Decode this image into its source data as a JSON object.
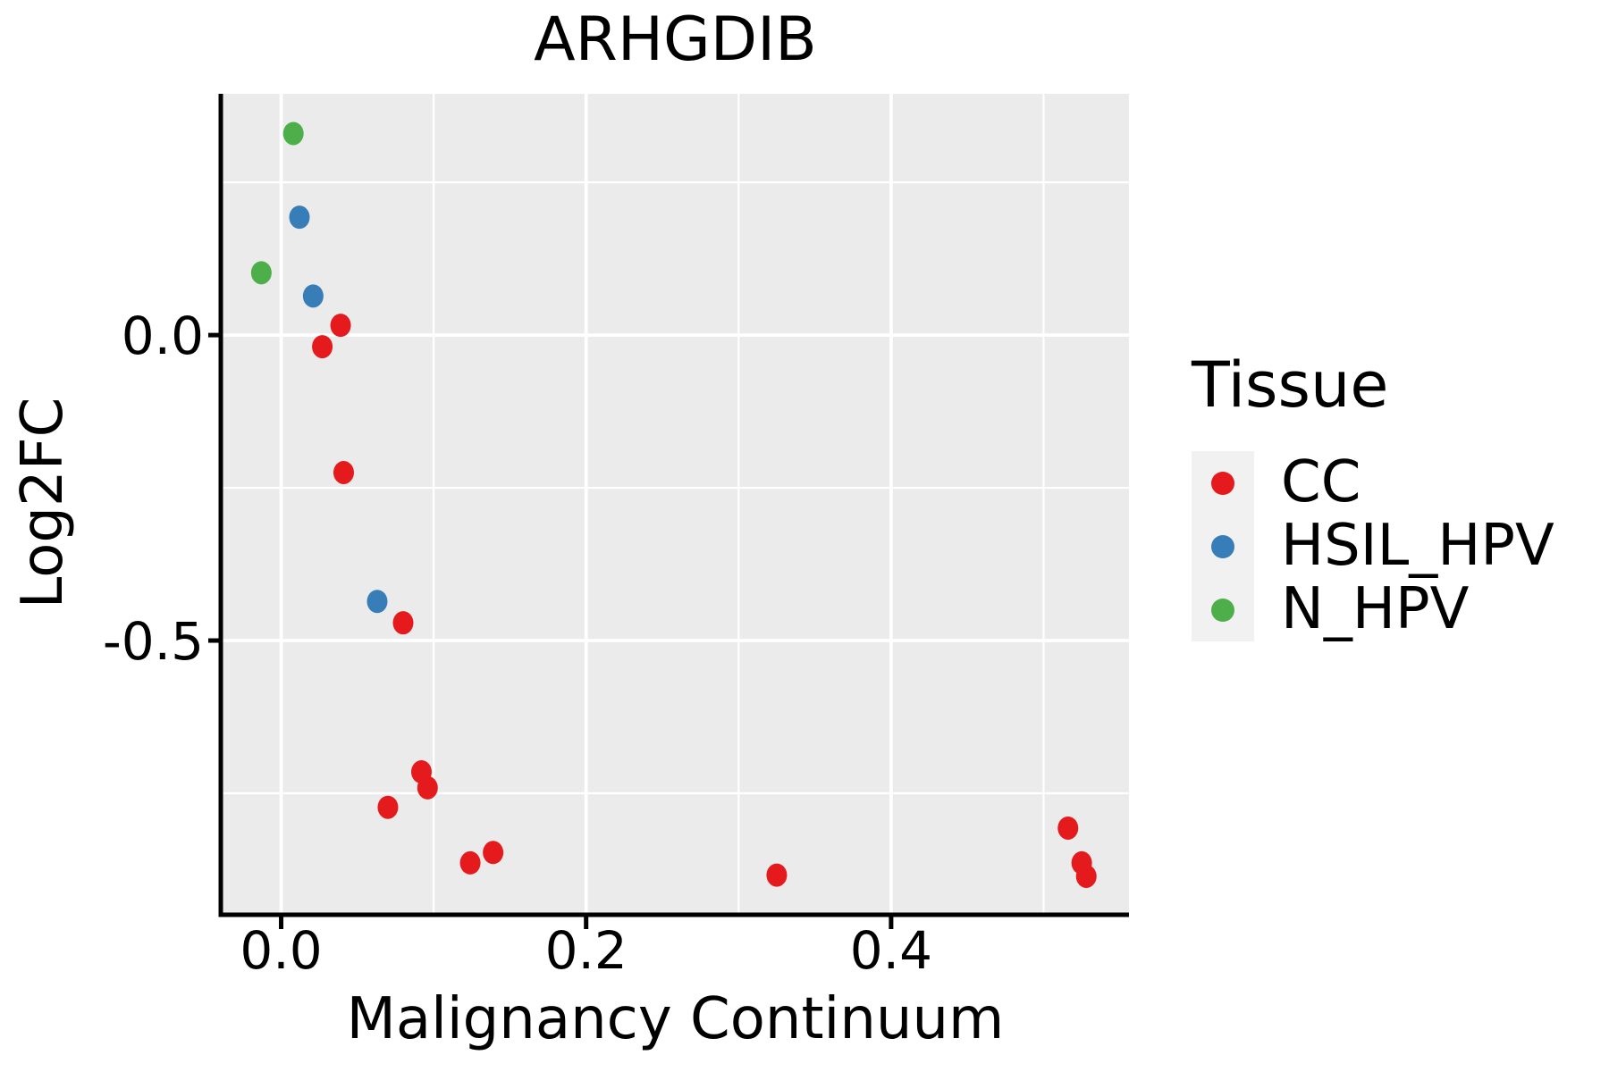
{
  "title": "ARHGDIB",
  "axes": {
    "x_label": "Malignancy Continuum",
    "y_label": "Log2FC"
  },
  "legend": {
    "title": "Tissue",
    "position": "right",
    "items": [
      {
        "label": "CC",
        "color": "#E41A1C"
      },
      {
        "label": "HSIL_HPV",
        "color": "#377EB8"
      },
      {
        "label": "N_HPV",
        "color": "#4DAF4A"
      }
    ]
  },
  "chart_data": {
    "type": "scatter",
    "title": "ARHGDIB",
    "xlabel": "Malignancy Continuum",
    "ylabel": "Log2FC",
    "xlim": [
      -0.039,
      0.556
    ],
    "ylim": [
      -0.946,
      0.395
    ],
    "grid": true,
    "panel_bg": "#EBEBEB",
    "grid_color": "#FFFFFF",
    "x_major_ticks": [
      0.0,
      0.2,
      0.4
    ],
    "x_tick_labels": [
      "0.0",
      "0.2",
      "0.4"
    ],
    "x_minor_gridlines": [
      0.1,
      0.3,
      0.5
    ],
    "y_major_ticks": [
      0.0,
      -0.5
    ],
    "y_tick_labels": [
      "0.0",
      "-0.5"
    ],
    "y_minor_gridlines": [
      0.25,
      -0.25,
      -0.75
    ],
    "series": [
      {
        "name": "CC",
        "color": "#E41A1C",
        "points": [
          [
            0.039,
            0.016
          ],
          [
            0.027,
            -0.019
          ],
          [
            0.041,
            -0.225
          ],
          [
            0.08,
            -0.471
          ],
          [
            0.07,
            -0.773
          ],
          [
            0.092,
            -0.715
          ],
          [
            0.096,
            -0.741
          ],
          [
            0.124,
            -0.864
          ],
          [
            0.139,
            -0.847
          ],
          [
            0.325,
            -0.884
          ],
          [
            0.516,
            -0.807
          ],
          [
            0.525,
            -0.864
          ],
          [
            0.528,
            -0.886
          ]
        ]
      },
      {
        "name": "HSIL_HPV",
        "color": "#377EB8",
        "points": [
          [
            0.012,
            0.193
          ],
          [
            0.021,
            0.064
          ],
          [
            0.063,
            -0.436
          ]
        ]
      },
      {
        "name": "N_HPV",
        "color": "#4DAF4A",
        "points": [
          [
            0.008,
            0.33
          ],
          [
            -0.013,
            0.102
          ]
        ]
      }
    ]
  }
}
